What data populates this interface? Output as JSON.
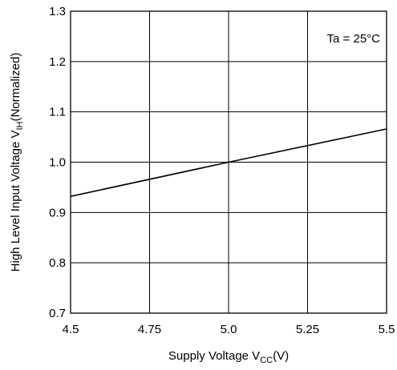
{
  "chart_data": {
    "type": "line",
    "xlabel": "Supply Voltage V",
    "xlabel_sub": "CC",
    "xlabel_unit": "(V)",
    "ylabel": "High Level Input Voltage V",
    "ylabel_sub": "IH",
    "ylabel_suffix": "(Normalized)",
    "xlim": [
      4.5,
      5.5
    ],
    "ylim": [
      0.7,
      1.3
    ],
    "xticks": [
      4.5,
      4.75,
      5.0,
      5.25,
      5.5
    ],
    "xtick_labels": [
      "4.5",
      "4.75",
      "5.0",
      "5.25",
      "5.5"
    ],
    "yticks": [
      0.7,
      0.8,
      0.9,
      1.0,
      1.1,
      1.2,
      1.3
    ],
    "ytick_labels": [
      "0.7",
      "0.8",
      "0.9",
      "1.0",
      "1.1",
      "1.2",
      "1.3"
    ],
    "grid": true,
    "annotation": "Ta = 25°C",
    "series": [
      {
        "x": [
          4.5,
          5.0,
          5.5
        ],
        "y": [
          0.932,
          1.0,
          1.066
        ]
      }
    ]
  }
}
